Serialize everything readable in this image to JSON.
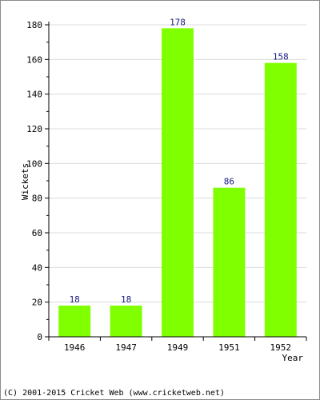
{
  "chart_data": {
    "type": "bar",
    "categories": [
      "1946",
      "1947",
      "1949",
      "1951",
      "1952"
    ],
    "values": [
      18,
      18,
      178,
      86,
      158
    ],
    "xlabel": "Year",
    "ylabel": "Wickets",
    "ylim": [
      0,
      180
    ],
    "yticks": [
      0,
      20,
      40,
      60,
      80,
      100,
      120,
      140,
      160,
      180
    ],
    "grid": true,
    "data_labels": true,
    "bar_color": "#80ff00",
    "data_label_color": "#1a1a80"
  },
  "footer": {
    "copyright": "(C) 2001-2015 Cricket Web (www.cricketweb.net)"
  }
}
